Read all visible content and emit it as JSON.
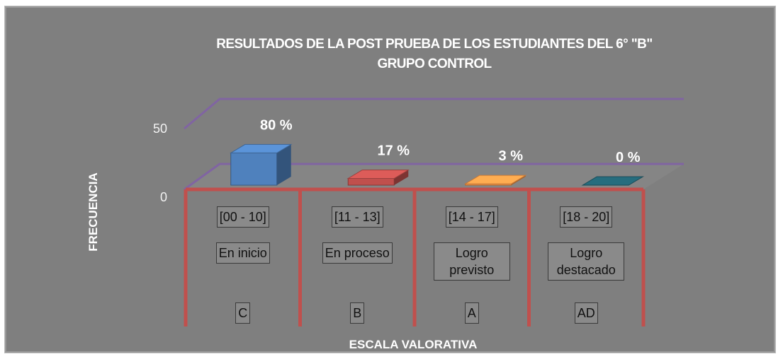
{
  "chart_data": {
    "type": "bar3d",
    "title": [
      "RESULTADOS DE LA POST PRUEBA DE LOS ESTUDIANTES DEL 6° \"B\"",
      "GRUPO CONTROL"
    ],
    "y_label": "FRECUENCIA",
    "x_label": "ESCALA VALORATIVA",
    "categories": [
      [
        "[00 - 10]",
        "En inicio",
        "C"
      ],
      [
        "[11 - 13]",
        "En proceso",
        "B"
      ],
      [
        "[14 - 17]",
        "Logro previsto",
        "A"
      ],
      [
        "[18 - 20]",
        "Logro destacado",
        "AD"
      ]
    ],
    "values": [
      24,
      5,
      1,
      0
    ],
    "value_labels": [
      "80 %",
      "17 %",
      "3 %",
      "0 %"
    ],
    "colors": [
      "#4f81bd",
      "#c0504d",
      "#f79646",
      "#215f6e"
    ],
    "ylim": [
      0,
      50
    ],
    "yticks": [
      0,
      50
    ],
    "grid": true
  }
}
